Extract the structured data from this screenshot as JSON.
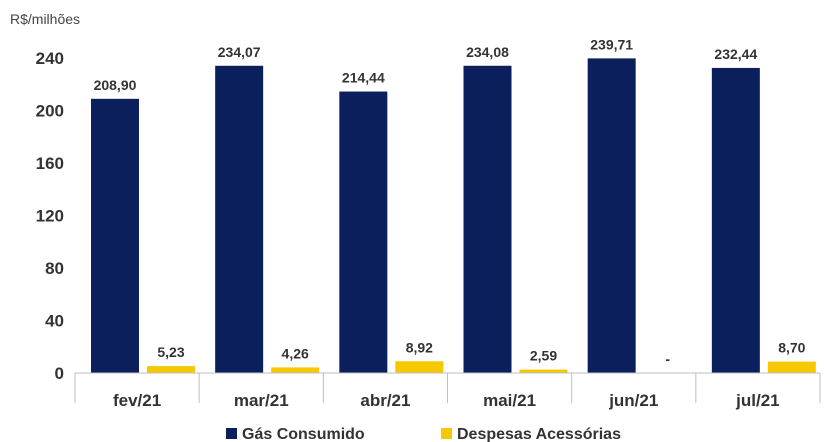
{
  "chart_data": {
    "type": "bar",
    "unit_label": "R$/milhões",
    "categories": [
      "fev/21",
      "mar/21",
      "abr/21",
      "mai/21",
      "jun/21",
      "jul/21"
    ],
    "series": [
      {
        "name": "Gás Consumido",
        "color": "#0b1f5c",
        "values": [
          208.9,
          234.07,
          214.44,
          234.08,
          239.71,
          232.44
        ],
        "labels": [
          "208,90",
          "234,07",
          "214,44",
          "234,08",
          "239,71",
          "232,44"
        ]
      },
      {
        "name": "Despesas Acessórias",
        "color": "#f5c800",
        "values": [
          5.23,
          4.26,
          8.92,
          2.59,
          0,
          8.7
        ],
        "labels": [
          "5,23",
          "4,26",
          "8,92",
          "2,59",
          "-",
          "8,70"
        ]
      }
    ],
    "yticks": [
      0,
      40,
      80,
      120,
      160,
      200,
      240
    ],
    "ylim": [
      0,
      240
    ],
    "grid": false,
    "legend_position": "bottom"
  }
}
